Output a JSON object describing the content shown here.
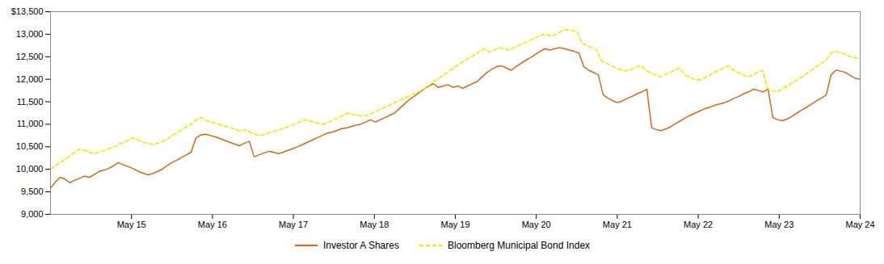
{
  "chart_data": {
    "type": "line",
    "xlim": [
      0,
      10
    ],
    "xticks": [
      {
        "value": 1,
        "label": "May 15"
      },
      {
        "value": 2,
        "label": "May 16"
      },
      {
        "value": 3,
        "label": "May 17"
      },
      {
        "value": 4,
        "label": "May 18"
      },
      {
        "value": 5,
        "label": "May 19"
      },
      {
        "value": 6,
        "label": "May 20"
      },
      {
        "value": 7,
        "label": "May 21"
      },
      {
        "value": 8,
        "label": "May 22"
      },
      {
        "value": 9,
        "label": "May 23"
      },
      {
        "value": 10,
        "label": "May 24"
      }
    ],
    "ylim": [
      9000,
      13500
    ],
    "yticks": [
      {
        "value": 9000,
        "label": "9,000"
      },
      {
        "value": 9500,
        "label": "9,500"
      },
      {
        "value": 10000,
        "label": "10,000"
      },
      {
        "value": 10500,
        "label": "10,500"
      },
      {
        "value": 11000,
        "label": "11,000"
      },
      {
        "value": 11500,
        "label": "11,500"
      },
      {
        "value": 12000,
        "label": "12,000"
      },
      {
        "value": 12500,
        "label": "12,500"
      },
      {
        "value": 13000,
        "label": "13,000"
      },
      {
        "value": 13500,
        "label": "$13,500"
      }
    ],
    "grid": false,
    "legend": "bottom",
    "series": [
      {
        "name": "Investor A Shares",
        "color": "#D2691E",
        "line_style": "solid",
        "values": [
          9580,
          9720,
          9820,
          9780,
          9700,
          9760,
          9800,
          9850,
          9820,
          9880,
          9950,
          9980,
          10020,
          10080,
          10150,
          10100,
          10060,
          10020,
          9960,
          9920,
          9880,
          9900,
          9950,
          10000,
          10080,
          10150,
          10200,
          10260,
          10320,
          10380,
          10700,
          10760,
          10780,
          10750,
          10720,
          10680,
          10640,
          10600,
          10560,
          10520,
          10580,
          10620,
          10280,
          10320,
          10360,
          10400,
          10380,
          10350,
          10380,
          10420,
          10460,
          10500,
          10550,
          10600,
          10650,
          10700,
          10750,
          10800,
          10820,
          10860,
          10900,
          10920,
          10950,
          10980,
          11000,
          11050,
          11100,
          11050,
          11100,
          11150,
          11200,
          11250,
          11350,
          11450,
          11550,
          11620,
          11700,
          11780,
          11850,
          11900,
          11820,
          11850,
          11880,
          11820,
          11850,
          11800,
          11850,
          11900,
          11950,
          12050,
          12150,
          12220,
          12280,
          12300,
          12250,
          12200,
          12280,
          12350,
          12420,
          12480,
          12550,
          12620,
          12680,
          12650,
          12680,
          12700,
          12680,
          12650,
          12620,
          12580,
          12280,
          12200,
          12150,
          12100,
          11650,
          11580,
          11520,
          11480,
          11520,
          11580,
          11620,
          11680,
          11720,
          11780,
          10920,
          10880,
          10860,
          10900,
          10950,
          11020,
          11080,
          11150,
          11200,
          11250,
          11300,
          11350,
          11380,
          11420,
          11450,
          11480,
          11520,
          11580,
          11620,
          11680,
          11720,
          11780,
          11750,
          11720,
          11780,
          11150,
          11100,
          11080,
          11120,
          11180,
          11250,
          11320,
          11380,
          11450,
          11520,
          11580,
          11650,
          12100,
          12200,
          12180,
          12150,
          12080,
          12020,
          12000
        ]
      },
      {
        "name": "Bloomberg Municipal Bond Index",
        "color": "#E8E800",
        "line_style": "dashed",
        "values": [
          10000,
          10080,
          10150,
          10220,
          10300,
          10380,
          10450,
          10420,
          10380,
          10350,
          10380,
          10420,
          10460,
          10500,
          10550,
          10600,
          10650,
          10700,
          10650,
          10600,
          10580,
          10550,
          10580,
          10620,
          10680,
          10750,
          10820,
          10880,
          10950,
          11020,
          11100,
          11150,
          11080,
          11050,
          11020,
          10980,
          10950,
          10920,
          10880,
          10850,
          10880,
          10820,
          10780,
          10750,
          10780,
          10820,
          10850,
          10880,
          10920,
          10960,
          11000,
          11050,
          11100,
          11080,
          11050,
          11020,
          11000,
          11050,
          11100,
          11150,
          11200,
          11250,
          11220,
          11200,
          11180,
          11200,
          11250,
          11300,
          11350,
          11400,
          11450,
          11500,
          11550,
          11600,
          11650,
          11700,
          11750,
          11820,
          11900,
          11980,
          12050,
          12120,
          12200,
          12280,
          12350,
          12420,
          12480,
          12550,
          12620,
          12680,
          12600,
          12650,
          12700,
          12680,
          12650,
          12700,
          12750,
          12800,
          12850,
          12900,
          12950,
          13000,
          12980,
          12960,
          13020,
          13080,
          13100,
          13080,
          13050,
          12800,
          12750,
          12700,
          12650,
          12400,
          12350,
          12300,
          12250,
          12200,
          12180,
          12220,
          12260,
          12300,
          12200,
          12150,
          12100,
          12050,
          12100,
          12150,
          12200,
          12250,
          12100,
          12050,
          12000,
          11980,
          12020,
          12080,
          12150,
          12200,
          12250,
          12300,
          12200,
          12150,
          12100,
          12050,
          12100,
          12150,
          12200,
          11800,
          11750,
          11720,
          11780,
          11850,
          11920,
          11980,
          12050,
          12120,
          12200,
          12280,
          12350,
          12420,
          12580,
          12620,
          12580,
          12550,
          12500,
          12480,
          12450
        ]
      }
    ]
  }
}
